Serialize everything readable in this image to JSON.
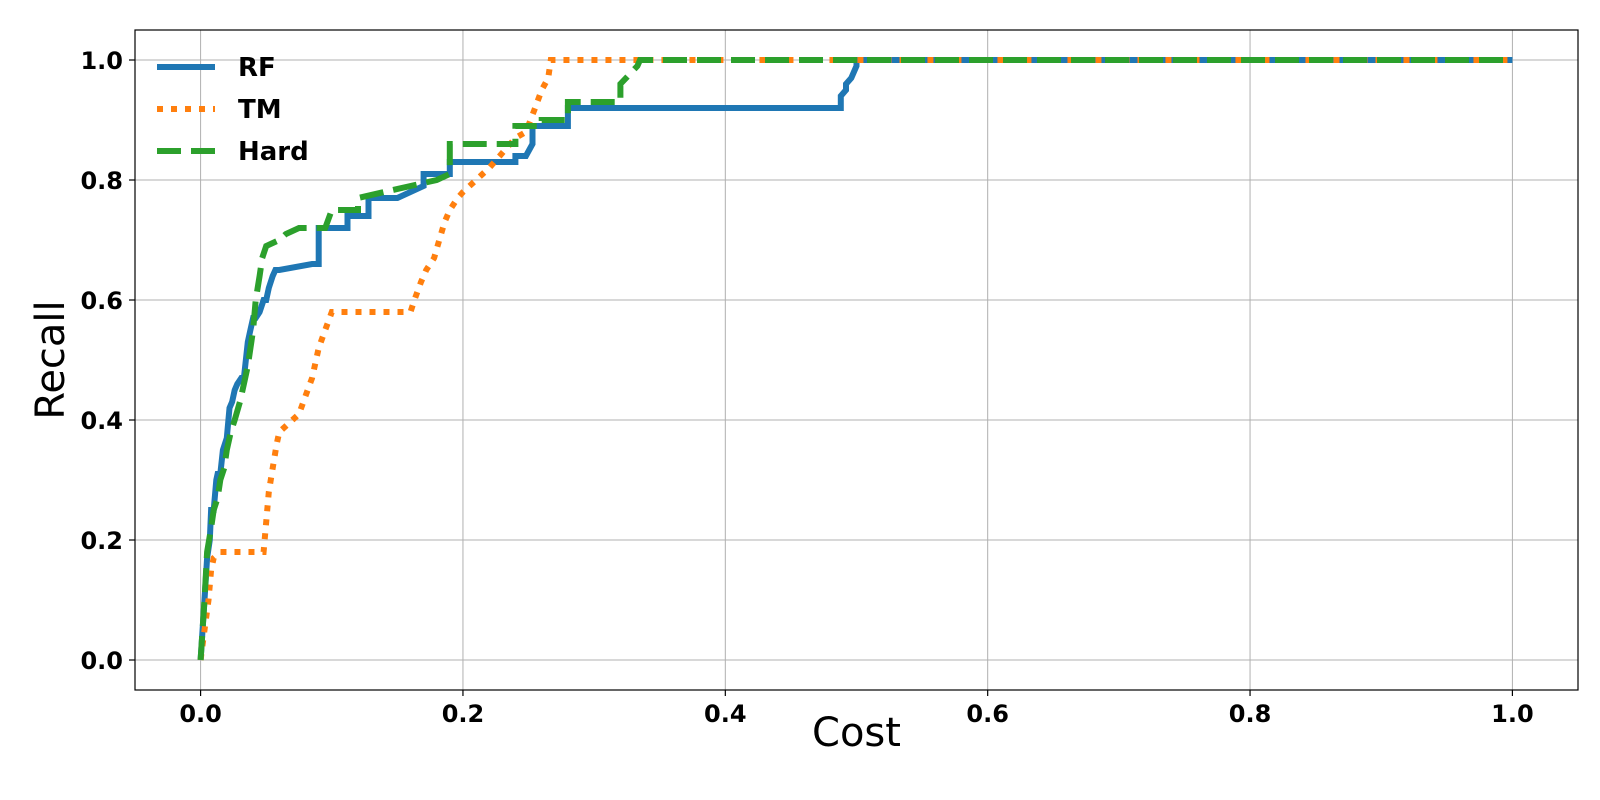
{
  "chart_data": {
    "type": "line",
    "xlabel": "Cost",
    "ylabel": "Recall",
    "xlim": [
      -0.05,
      1.05
    ],
    "ylim": [
      -0.05,
      1.05
    ],
    "xticks": [
      0.0,
      0.2,
      0.4,
      0.6,
      0.8,
      1.0
    ],
    "yticks": [
      0.0,
      0.2,
      0.4,
      0.6,
      0.8,
      1.0
    ],
    "xtick_labels": [
      "0.0",
      "0.2",
      "0.4",
      "0.6",
      "0.8",
      "1.0"
    ],
    "ytick_labels": [
      "0.0",
      "0.2",
      "0.4",
      "0.6",
      "0.8",
      "1.0"
    ],
    "grid": true,
    "legend_position": "top-left",
    "series": [
      {
        "name": "RF",
        "color": "#1f77b4",
        "style": "solid",
        "x": [
          0.0,
          0.003,
          0.005,
          0.007,
          0.008,
          0.01,
          0.012,
          0.013,
          0.015,
          0.017,
          0.02,
          0.022,
          0.024,
          0.026,
          0.028,
          0.031,
          0.033,
          0.036,
          0.038,
          0.04,
          0.042,
          0.045,
          0.048,
          0.05,
          0.052,
          0.055,
          0.057,
          0.06,
          0.085,
          0.09,
          0.09,
          0.112,
          0.112,
          0.128,
          0.128,
          0.15,
          0.17,
          0.17,
          0.19,
          0.19,
          0.24,
          0.24,
          0.248,
          0.253,
          0.253,
          0.275,
          0.28,
          0.28,
          0.488,
          0.488,
          0.492,
          0.492,
          0.496,
          0.5,
          0.5,
          1.0
        ],
        "y": [
          0.0,
          0.1,
          0.17,
          0.2,
          0.25,
          0.25,
          0.3,
          0.31,
          0.31,
          0.35,
          0.37,
          0.42,
          0.43,
          0.45,
          0.46,
          0.47,
          0.47,
          0.53,
          0.55,
          0.57,
          0.57,
          0.58,
          0.6,
          0.6,
          0.62,
          0.64,
          0.65,
          0.65,
          0.66,
          0.66,
          0.72,
          0.72,
          0.74,
          0.74,
          0.77,
          0.77,
          0.79,
          0.81,
          0.81,
          0.83,
          0.83,
          0.84,
          0.84,
          0.86,
          0.89,
          0.89,
          0.89,
          0.92,
          0.92,
          0.94,
          0.95,
          0.96,
          0.97,
          0.99,
          1.0,
          1.0
        ]
      },
      {
        "name": "TM",
        "color": "#ff7f0e",
        "style": "dotted",
        "x": [
          0.0,
          0.003,
          0.006,
          0.008,
          0.01,
          0.015,
          0.048,
          0.05,
          0.052,
          0.055,
          0.058,
          0.06,
          0.065,
          0.07,
          0.075,
          0.08,
          0.085,
          0.09,
          0.095,
          0.1,
          0.16,
          0.163,
          0.168,
          0.172,
          0.178,
          0.182,
          0.186,
          0.19,
          0.196,
          0.2,
          0.21,
          0.215,
          0.22,
          0.228,
          0.232,
          0.24,
          0.248,
          0.255,
          0.26,
          0.265,
          0.267,
          0.3,
          1.0
        ],
        "y": [
          0.0,
          0.05,
          0.1,
          0.15,
          0.17,
          0.18,
          0.18,
          0.23,
          0.28,
          0.32,
          0.36,
          0.38,
          0.39,
          0.4,
          0.41,
          0.44,
          0.47,
          0.52,
          0.55,
          0.58,
          0.58,
          0.6,
          0.63,
          0.65,
          0.67,
          0.7,
          0.73,
          0.75,
          0.77,
          0.78,
          0.8,
          0.81,
          0.82,
          0.84,
          0.85,
          0.87,
          0.88,
          0.92,
          0.95,
          0.97,
          1.0,
          1.0,
          1.0
        ]
      },
      {
        "name": "Hard",
        "color": "#2ca02c",
        "style": "dashed",
        "x": [
          0.0,
          0.003,
          0.005,
          0.008,
          0.01,
          0.013,
          0.015,
          0.018,
          0.02,
          0.023,
          0.026,
          0.03,
          0.033,
          0.036,
          0.04,
          0.042,
          0.045,
          0.047,
          0.05,
          0.06,
          0.065,
          0.075,
          0.095,
          0.1,
          0.12,
          0.12,
          0.14,
          0.16,
          0.18,
          0.19,
          0.19,
          0.24,
          0.24,
          0.26,
          0.26,
          0.28,
          0.28,
          0.32,
          0.32,
          0.333,
          0.335,
          1.0
        ],
        "y": [
          0.0,
          0.1,
          0.18,
          0.22,
          0.25,
          0.27,
          0.3,
          0.32,
          0.35,
          0.38,
          0.4,
          0.43,
          0.46,
          0.49,
          0.55,
          0.6,
          0.64,
          0.67,
          0.69,
          0.7,
          0.71,
          0.72,
          0.72,
          0.75,
          0.75,
          0.77,
          0.78,
          0.79,
          0.8,
          0.81,
          0.86,
          0.86,
          0.89,
          0.89,
          0.9,
          0.9,
          0.93,
          0.93,
          0.96,
          0.99,
          1.0,
          1.0
        ]
      }
    ]
  }
}
